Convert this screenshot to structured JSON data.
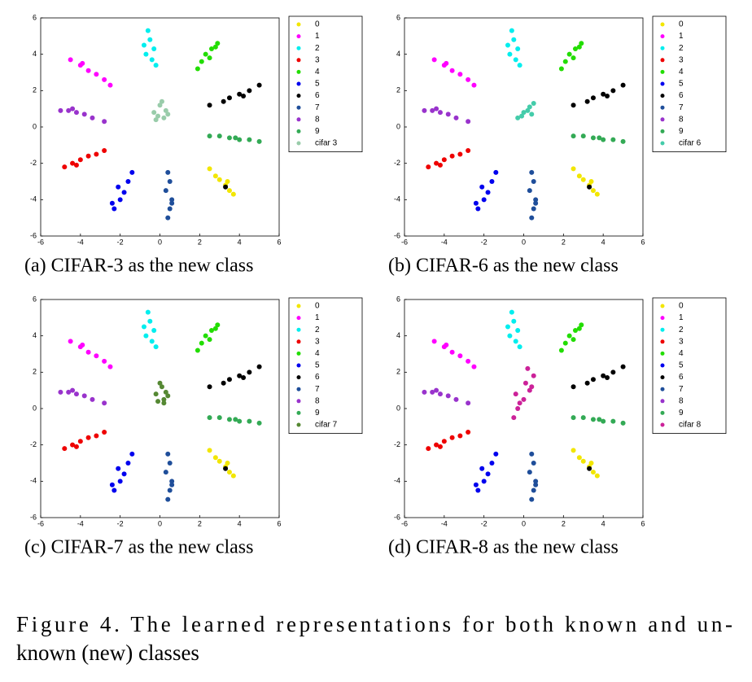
{
  "chart_data": [
    {
      "type": "scatter",
      "caption": "(a) CIFAR-3 as the new class",
      "xlim": [
        -6,
        6
      ],
      "ylim": [
        -6,
        6
      ],
      "xticks": [
        -6,
        -4,
        -2,
        0,
        2,
        4,
        6
      ],
      "yticks": [
        -6,
        -4,
        -2,
        0,
        2,
        4,
        6
      ],
      "legend": "outside-right",
      "series": [
        {
          "name": "0",
          "color": "#f2e600",
          "x": [
            3.3,
            3.5,
            3.0,
            3.7,
            2.8,
            2.5,
            3.4
          ],
          "y": [
            -3.2,
            -3.5,
            -2.9,
            -3.7,
            -2.7,
            -2.3,
            -3.0
          ]
        },
        {
          "name": "1",
          "color": "#ff00ff",
          "x": [
            -4.5,
            -4.0,
            -3.6,
            -3.2,
            -2.8,
            -3.9,
            -2.5
          ],
          "y": [
            3.7,
            3.4,
            3.1,
            2.9,
            2.6,
            3.5,
            2.3
          ]
        },
        {
          "name": "2",
          "color": "#00eeee",
          "x": [
            -0.6,
            -0.5,
            -0.3,
            -0.7,
            -0.4,
            -0.2,
            -0.8
          ],
          "y": [
            5.3,
            4.8,
            4.3,
            4.0,
            3.7,
            3.4,
            4.5
          ]
        },
        {
          "name": "3",
          "color": "#ee0000",
          "x": [
            -4.8,
            -4.4,
            -4.0,
            -3.6,
            -3.2,
            -4.2,
            -2.8
          ],
          "y": [
            -2.2,
            -2.0,
            -1.8,
            -1.6,
            -1.5,
            -2.1,
            -1.3
          ]
        },
        {
          "name": "4",
          "color": "#22dd00",
          "x": [
            2.9,
            2.6,
            2.3,
            2.1,
            2.5,
            2.8,
            1.9
          ],
          "y": [
            4.6,
            4.3,
            4.0,
            3.6,
            3.8,
            4.4,
            3.2
          ]
        },
        {
          "name": "5",
          "color": "#0000ee",
          "x": [
            -2.3,
            -2.0,
            -1.8,
            -2.1,
            -1.6,
            -1.4,
            -2.4
          ],
          "y": [
            -4.5,
            -4.0,
            -3.6,
            -3.3,
            -3.0,
            -2.5,
            -4.2
          ]
        },
        {
          "name": "6",
          "color": "#000000",
          "x": [
            3.5,
            4.0,
            4.5,
            5.0,
            3.2,
            4.2,
            2.5,
            3.3
          ],
          "y": [
            1.6,
            1.8,
            2.0,
            2.3,
            1.4,
            1.7,
            1.2,
            -3.3
          ]
        },
        {
          "name": "7",
          "color": "#1f4e9a",
          "x": [
            0.4,
            0.5,
            0.6,
            0.3,
            0.5,
            0.4,
            0.6
          ],
          "y": [
            -5.0,
            -4.5,
            -4.0,
            -3.5,
            -3.0,
            -2.5,
            -4.2
          ]
        },
        {
          "name": "8",
          "color": "#9933cc",
          "x": [
            -5.0,
            -4.6,
            -4.2,
            -3.8,
            -3.4,
            -4.4,
            -2.8
          ],
          "y": [
            0.9,
            0.9,
            0.8,
            0.7,
            0.5,
            1.0,
            0.3
          ]
        },
        {
          "name": "9",
          "color": "#33aa55",
          "x": [
            2.5,
            3.0,
            3.5,
            4.0,
            4.5,
            5.0,
            3.8
          ],
          "y": [
            -0.5,
            -0.5,
            -0.6,
            -0.7,
            -0.7,
            -0.8,
            -0.6
          ]
        },
        {
          "name": "cifar 3",
          "color": "#99ccaa",
          "x": [
            -0.3,
            0,
            0.3,
            0.2,
            -0.2,
            0.4,
            0.1,
            -0.1
          ],
          "y": [
            0.8,
            1.2,
            0.9,
            0.5,
            0.4,
            0.7,
            1.4,
            0.6
          ]
        }
      ]
    },
    {
      "type": "scatter",
      "caption": "(b) CIFAR-6 as the new class",
      "xlim": [
        -6,
        6
      ],
      "ylim": [
        -6,
        6
      ],
      "xticks": [
        -6,
        -4,
        -2,
        0,
        2,
        4,
        6
      ],
      "yticks": [
        -6,
        -4,
        -2,
        0,
        2,
        4,
        6
      ],
      "legend": "outside-right",
      "series": [
        {
          "name": "0",
          "color": "#f2e600",
          "x": [
            3.3,
            3.5,
            3.0,
            3.7,
            2.8,
            2.5,
            3.4
          ],
          "y": [
            -3.2,
            -3.5,
            -2.9,
            -3.7,
            -2.7,
            -2.3,
            -3.0
          ]
        },
        {
          "name": "1",
          "color": "#ff00ff",
          "x": [
            -4.5,
            -4.0,
            -3.6,
            -3.2,
            -2.8,
            -3.9,
            -2.5
          ],
          "y": [
            3.7,
            3.4,
            3.1,
            2.9,
            2.6,
            3.5,
            2.3
          ]
        },
        {
          "name": "2",
          "color": "#00eeee",
          "x": [
            -0.6,
            -0.5,
            -0.3,
            -0.7,
            -0.4,
            -0.2,
            -0.8
          ],
          "y": [
            5.3,
            4.8,
            4.3,
            4.0,
            3.7,
            3.4,
            4.5
          ]
        },
        {
          "name": "3",
          "color": "#ee0000",
          "x": [
            -4.8,
            -4.4,
            -4.0,
            -3.6,
            -3.2,
            -4.2,
            -2.8
          ],
          "y": [
            -2.2,
            -2.0,
            -1.8,
            -1.6,
            -1.5,
            -2.1,
            -1.3
          ]
        },
        {
          "name": "4",
          "color": "#22dd00",
          "x": [
            2.9,
            2.6,
            2.3,
            2.1,
            2.5,
            2.8,
            1.9
          ],
          "y": [
            4.6,
            4.3,
            4.0,
            3.6,
            3.8,
            4.4,
            3.2
          ]
        },
        {
          "name": "5",
          "color": "#0000ee",
          "x": [
            -2.3,
            -2.0,
            -1.8,
            -2.1,
            -1.6,
            -1.4,
            -2.4
          ],
          "y": [
            -4.5,
            -4.0,
            -3.6,
            -3.3,
            -3.0,
            -2.5,
            -4.2
          ]
        },
        {
          "name": "6",
          "color": "#000000",
          "x": [
            3.5,
            4.0,
            4.5,
            5.0,
            3.2,
            4.2,
            2.5,
            3.3
          ],
          "y": [
            1.6,
            1.8,
            2.0,
            2.3,
            1.4,
            1.7,
            1.2,
            -3.3
          ]
        },
        {
          "name": "7",
          "color": "#1f4e9a",
          "x": [
            0.4,
            0.5,
            0.6,
            0.3,
            0.5,
            0.4,
            0.6
          ],
          "y": [
            -5.0,
            -4.5,
            -4.0,
            -3.5,
            -3.0,
            -2.5,
            -4.2
          ]
        },
        {
          "name": "8",
          "color": "#9933cc",
          "x": [
            -5.0,
            -4.6,
            -4.2,
            -3.8,
            -3.4,
            -4.4,
            -2.8
          ],
          "y": [
            0.9,
            0.9,
            0.8,
            0.7,
            0.5,
            1.0,
            0.3
          ]
        },
        {
          "name": "9",
          "color": "#33aa55",
          "x": [
            2.5,
            3.0,
            3.5,
            4.0,
            4.5,
            5.0,
            3.8
          ],
          "y": [
            -0.5,
            -0.5,
            -0.6,
            -0.7,
            -0.7,
            -0.8,
            -0.6
          ]
        },
        {
          "name": "cifar 6",
          "color": "#44ccaa",
          "x": [
            -0.3,
            0,
            0.3,
            0.5,
            -0.1,
            0.2,
            0.4
          ],
          "y": [
            0.5,
            0.8,
            1.1,
            1.3,
            0.6,
            0.9,
            0.7
          ]
        }
      ]
    },
    {
      "type": "scatter",
      "caption": "(c) CIFAR-7 as the new class",
      "xlim": [
        -6,
        6
      ],
      "ylim": [
        -6,
        6
      ],
      "xticks": [
        -6,
        -4,
        -2,
        0,
        2,
        4,
        6
      ],
      "yticks": [
        -6,
        -4,
        -2,
        0,
        2,
        4,
        6
      ],
      "legend": "outside-right",
      "series": [
        {
          "name": "0",
          "color": "#f2e600",
          "x": [
            3.3,
            3.5,
            3.0,
            3.7,
            2.8,
            2.5,
            3.4
          ],
          "y": [
            -3.2,
            -3.5,
            -2.9,
            -3.7,
            -2.7,
            -2.3,
            -3.0
          ]
        },
        {
          "name": "1",
          "color": "#ff00ff",
          "x": [
            -4.5,
            -4.0,
            -3.6,
            -3.2,
            -2.8,
            -3.9,
            -2.5
          ],
          "y": [
            3.7,
            3.4,
            3.1,
            2.9,
            2.6,
            3.5,
            2.3
          ]
        },
        {
          "name": "2",
          "color": "#00eeee",
          "x": [
            -0.6,
            -0.5,
            -0.3,
            -0.7,
            -0.4,
            -0.2,
            -0.8
          ],
          "y": [
            5.3,
            4.8,
            4.3,
            4.0,
            3.7,
            3.4,
            4.5
          ]
        },
        {
          "name": "3",
          "color": "#ee0000",
          "x": [
            -4.8,
            -4.4,
            -4.0,
            -3.6,
            -3.2,
            -4.2,
            -2.8
          ],
          "y": [
            -2.2,
            -2.0,
            -1.8,
            -1.6,
            -1.5,
            -2.1,
            -1.3
          ]
        },
        {
          "name": "4",
          "color": "#22dd00",
          "x": [
            2.9,
            2.6,
            2.3,
            2.1,
            2.5,
            2.8,
            1.9
          ],
          "y": [
            4.6,
            4.3,
            4.0,
            3.6,
            3.8,
            4.4,
            3.2
          ]
        },
        {
          "name": "5",
          "color": "#0000ee",
          "x": [
            -2.3,
            -2.0,
            -1.8,
            -2.1,
            -1.6,
            -1.4,
            -2.4
          ],
          "y": [
            -4.5,
            -4.0,
            -3.6,
            -3.3,
            -3.0,
            -2.5,
            -4.2
          ]
        },
        {
          "name": "6",
          "color": "#000000",
          "x": [
            3.5,
            4.0,
            4.5,
            5.0,
            3.2,
            4.2,
            2.5,
            3.3
          ],
          "y": [
            1.6,
            1.8,
            2.0,
            2.3,
            1.4,
            1.7,
            1.2,
            -3.3
          ]
        },
        {
          "name": "7",
          "color": "#1f4e9a",
          "x": [
            0.4,
            0.5,
            0.6,
            0.3,
            0.5,
            0.4,
            0.6
          ],
          "y": [
            -5.0,
            -4.5,
            -4.0,
            -3.5,
            -3.0,
            -2.5,
            -4.2
          ]
        },
        {
          "name": "8",
          "color": "#9933cc",
          "x": [
            -5.0,
            -4.6,
            -4.2,
            -3.8,
            -3.4,
            -4.4,
            -2.8
          ],
          "y": [
            0.9,
            0.9,
            0.8,
            0.7,
            0.5,
            1.0,
            0.3
          ]
        },
        {
          "name": "9",
          "color": "#33aa55",
          "x": [
            2.5,
            3.0,
            3.5,
            4.0,
            4.5,
            5.0,
            3.8
          ],
          "y": [
            -0.5,
            -0.5,
            -0.6,
            -0.7,
            -0.7,
            -0.8,
            -0.6
          ]
        },
        {
          "name": "cifar 7",
          "color": "#558833",
          "x": [
            -0.2,
            0.1,
            0.3,
            0.2,
            -0.1,
            0.4,
            0.0,
            0.2
          ],
          "y": [
            0.8,
            1.2,
            0.9,
            0.5,
            0.4,
            0.7,
            1.4,
            0.3
          ]
        }
      ]
    },
    {
      "type": "scatter",
      "caption": "(d) CIFAR-8 as the new class",
      "xlim": [
        -6,
        6
      ],
      "ylim": [
        -6,
        6
      ],
      "xticks": [
        -6,
        -4,
        -2,
        0,
        2,
        4,
        6
      ],
      "yticks": [
        -6,
        -4,
        -2,
        0,
        2,
        4,
        6
      ],
      "legend": "outside-right",
      "series": [
        {
          "name": "0",
          "color": "#f2e600",
          "x": [
            3.3,
            3.5,
            3.0,
            3.7,
            2.8,
            2.5,
            3.4
          ],
          "y": [
            -3.2,
            -3.5,
            -2.9,
            -3.7,
            -2.7,
            -2.3,
            -3.0
          ]
        },
        {
          "name": "1",
          "color": "#ff00ff",
          "x": [
            -4.5,
            -4.0,
            -3.6,
            -3.2,
            -2.8,
            -3.9,
            -2.5
          ],
          "y": [
            3.7,
            3.4,
            3.1,
            2.9,
            2.6,
            3.5,
            2.3
          ]
        },
        {
          "name": "2",
          "color": "#00eeee",
          "x": [
            -0.6,
            -0.5,
            -0.3,
            -0.7,
            -0.4,
            -0.2,
            -0.8
          ],
          "y": [
            5.3,
            4.8,
            4.3,
            4.0,
            3.7,
            3.4,
            4.5
          ]
        },
        {
          "name": "3",
          "color": "#ee0000",
          "x": [
            -4.8,
            -4.4,
            -4.0,
            -3.6,
            -3.2,
            -4.2,
            -2.8
          ],
          "y": [
            -2.2,
            -2.0,
            -1.8,
            -1.6,
            -1.5,
            -2.1,
            -1.3
          ]
        },
        {
          "name": "4",
          "color": "#22dd00",
          "x": [
            2.9,
            2.6,
            2.3,
            2.1,
            2.5,
            2.8,
            1.9
          ],
          "y": [
            4.6,
            4.3,
            4.0,
            3.6,
            3.8,
            4.4,
            3.2
          ]
        },
        {
          "name": "5",
          "color": "#0000ee",
          "x": [
            -2.3,
            -2.0,
            -1.8,
            -2.1,
            -1.6,
            -1.4,
            -2.4
          ],
          "y": [
            -4.5,
            -4.0,
            -3.6,
            -3.3,
            -3.0,
            -2.5,
            -4.2
          ]
        },
        {
          "name": "6",
          "color": "#000000",
          "x": [
            3.5,
            4.0,
            4.5,
            5.0,
            3.2,
            4.2,
            2.5,
            3.3
          ],
          "y": [
            1.6,
            1.8,
            2.0,
            2.3,
            1.4,
            1.7,
            1.2,
            -3.3
          ]
        },
        {
          "name": "7",
          "color": "#1f4e9a",
          "x": [
            0.4,
            0.5,
            0.6,
            0.3,
            0.5,
            0.4,
            0.6
          ],
          "y": [
            -5.0,
            -4.5,
            -4.0,
            -3.5,
            -3.0,
            -2.5,
            -4.2
          ]
        },
        {
          "name": "8",
          "color": "#9933cc",
          "x": [
            -5.0,
            -4.6,
            -4.2,
            -3.8,
            -3.4,
            -4.4,
            -2.8
          ],
          "y": [
            0.9,
            0.9,
            0.8,
            0.7,
            0.5,
            1.0,
            0.3
          ]
        },
        {
          "name": "9",
          "color": "#33aa55",
          "x": [
            2.5,
            3.0,
            3.5,
            4.0,
            4.5,
            5.0,
            3.8
          ],
          "y": [
            -0.5,
            -0.5,
            -0.6,
            -0.7,
            -0.7,
            -0.8,
            -0.6
          ]
        },
        {
          "name": "cifar 8",
          "color": "#cc2299",
          "x": [
            -0.5,
            -0.3,
            0.0,
            0.3,
            0.5,
            0.2,
            -0.2,
            0.1,
            0.4,
            -0.4
          ],
          "y": [
            -0.5,
            0.0,
            0.5,
            1.0,
            1.8,
            2.2,
            0.3,
            1.4,
            1.2,
            0.8
          ]
        }
      ]
    }
  ],
  "figure_caption": [
    "Figure 4. The learned representations for both known and un-",
    "known (new) classes"
  ]
}
